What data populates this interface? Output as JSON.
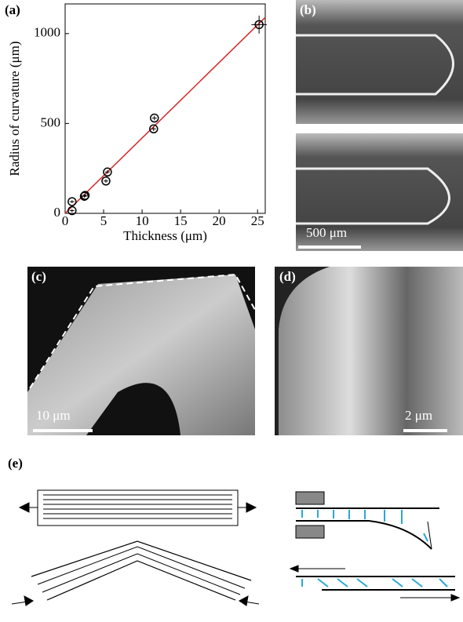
{
  "chart_data": {
    "type": "scatter",
    "panel": "(a)",
    "x_label": "Thickness (μm)",
    "y_label": "Radius of curvature (μm)",
    "x": [
      0.9,
      0.9,
      2.5,
      2.6,
      5.3,
      5.5,
      11.5,
      11.6,
      25.2
    ],
    "values": [
      15,
      65,
      95,
      100,
      180,
      230,
      470,
      530,
      1050
    ],
    "yerr": [
      8,
      8,
      8,
      8,
      10,
      10,
      12,
      12,
      50
    ],
    "xerr": [
      0.3,
      0.3,
      0.3,
      0.3,
      0.3,
      0.3,
      0.3,
      0.3,
      1
    ],
    "color": "#000000",
    "fit_line": {
      "color": "#d62728",
      "x": [
        0,
        26
      ],
      "values": [
        0,
        1090
      ]
    },
    "xlim": [
      0,
      26
    ],
    "ylim": [
      0,
      1165
    ],
    "xticks": [
      0,
      5,
      10,
      15,
      20,
      25
    ],
    "yticks": [
      0,
      500,
      1000
    ]
  },
  "panels": {
    "b": {
      "label": "(b)",
      "scale_bar": "500 μm"
    },
    "c": {
      "label": "(c)",
      "scale_bar": "10 μm"
    },
    "d": {
      "label": "(d)",
      "scale_bar": "2 μm"
    },
    "e": {
      "label": "(e)"
    }
  }
}
